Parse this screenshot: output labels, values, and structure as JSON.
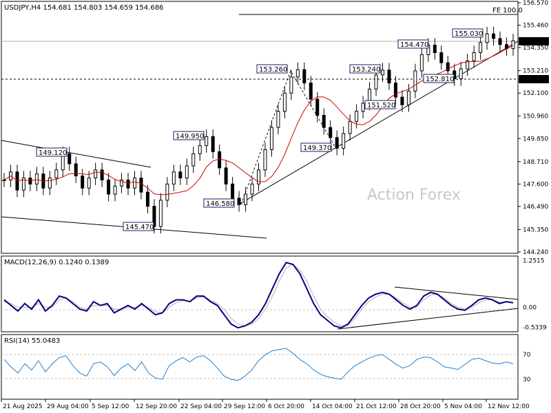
{
  "chart_data": {
    "type": "line",
    "title": "USDJPY,H4 154.681 154.803 154.659 154.686",
    "watermark": "Action Forex",
    "colors": {
      "candle": "#000000",
      "ma": "#d00000",
      "macd": "#000080",
      "signal": "#b0b0b0",
      "rsi": "#1e7fd0",
      "trend": "#000000"
    },
    "price_axis": {
      "ticks": [
        "156.570",
        "155.460",
        "154.350",
        "153.210",
        "152.100",
        "150.960",
        "149.850",
        "148.710",
        "147.600",
        "146.490",
        "145.350",
        "144.240"
      ],
      "range": [
        144.24,
        156.57
      ]
    },
    "current_price": "154.686",
    "level_152_810": "152.810",
    "fe_label": "FE 100.0",
    "price_labels": [
      "149.120",
      "145.470",
      "149.950",
      "146.580",
      "153.260",
      "149.370",
      "153.240",
      "151.520",
      "154.470",
      "152.810",
      "155.030"
    ],
    "series_price": [
      147.8,
      148.2,
      147.3,
      147.9,
      147.6,
      148.1,
      147.4,
      147.9,
      148.3,
      149.1,
      148.6,
      148.0,
      147.4,
      147.9,
      148.3,
      147.8,
      147.1,
      147.5,
      147.8,
      147.4,
      147.9,
      147.2,
      146.5,
      145.5,
      146.8,
      147.6,
      148.2,
      147.9,
      148.5,
      149.1,
      149.5,
      149.95,
      149.2,
      148.4,
      147.6,
      146.9,
      146.58,
      147.1,
      147.6,
      148.3,
      149.3,
      150.4,
      151.2,
      152.1,
      152.9,
      153.26,
      152.6,
      151.8,
      151.0,
      150.4,
      149.9,
      149.37,
      150.1,
      150.7,
      151.2,
      151.6,
      152.3,
      153.0,
      153.24,
      152.6,
      151.9,
      151.52,
      152.2,
      153.2,
      154.0,
      154.47,
      154.1,
      153.6,
      153.2,
      152.81,
      153.3,
      153.7,
      154.1,
      154.6,
      155.03,
      154.8,
      154.5,
      154.3,
      154.686
    ],
    "macd": {
      "label": "MACD(12,26,9) 0.1240 0.1389",
      "ticks": [
        "1.2515",
        "0.00",
        "-0.5339"
      ],
      "range": [
        -0.62,
        1.3
      ]
    },
    "macd_series": [
      0.2,
      0.05,
      -0.1,
      0.1,
      -0.05,
      0.2,
      -0.1,
      0.05,
      0.3,
      0.25,
      0.1,
      -0.05,
      -0.1,
      0.15,
      0.05,
      0.1,
      -0.15,
      -0.05,
      0.05,
      -0.05,
      0.1,
      -0.05,
      -0.2,
      -0.15,
      0.1,
      0.2,
      0.2,
      0.15,
      0.3,
      0.3,
      0.15,
      0.05,
      -0.2,
      -0.45,
      -0.55,
      -0.5,
      -0.4,
      -0.2,
      0.1,
      0.5,
      0.9,
      1.2,
      1.15,
      0.9,
      0.5,
      0.1,
      -0.2,
      -0.35,
      -0.5,
      -0.55,
      -0.45,
      -0.2,
      0.05,
      0.25,
      0.35,
      0.4,
      0.35,
      0.2,
      0.05,
      -0.05,
      0.05,
      0.3,
      0.4,
      0.35,
      0.2,
      0.05,
      -0.05,
      -0.08,
      0.05,
      0.2,
      0.25,
      0.2,
      0.1,
      0.15,
      0.12
    ],
    "signal_series": [
      0.15,
      0.1,
      0.0,
      0.0,
      0.0,
      0.1,
      0.0,
      0.0,
      0.2,
      0.25,
      0.15,
      0.0,
      -0.05,
      0.05,
      0.05,
      0.05,
      -0.05,
      -0.05,
      0.0,
      0.0,
      0.05,
      0.0,
      -0.12,
      -0.15,
      0.0,
      0.12,
      0.18,
      0.17,
      0.25,
      0.28,
      0.2,
      0.1,
      -0.05,
      -0.3,
      -0.45,
      -0.5,
      -0.45,
      -0.3,
      -0.05,
      0.3,
      0.7,
      1.05,
      1.15,
      1.0,
      0.7,
      0.3,
      -0.05,
      -0.25,
      -0.4,
      -0.5,
      -0.48,
      -0.3,
      -0.05,
      0.15,
      0.28,
      0.35,
      0.35,
      0.25,
      0.12,
      0.0,
      0.0,
      0.2,
      0.33,
      0.35,
      0.25,
      0.1,
      0.0,
      -0.05,
      0.0,
      0.12,
      0.2,
      0.2,
      0.14,
      0.14,
      0.14
    ],
    "rsi": {
      "label": "RSI(14) 55.0483",
      "ticks": [
        "70",
        "30"
      ],
      "range": [
        0,
        100
      ]
    },
    "rsi_series": [
      62,
      50,
      40,
      55,
      45,
      60,
      42,
      55,
      65,
      68,
      52,
      40,
      35,
      55,
      58,
      50,
      36,
      48,
      55,
      44,
      58,
      40,
      32,
      30,
      52,
      60,
      65,
      58,
      66,
      68,
      60,
      48,
      35,
      30,
      28,
      35,
      45,
      60,
      70,
      76,
      78,
      80,
      72,
      62,
      55,
      45,
      38,
      34,
      32,
      30,
      42,
      52,
      58,
      64,
      68,
      70,
      62,
      54,
      48,
      52,
      62,
      66,
      65,
      58,
      50,
      48,
      46,
      54,
      62,
      64,
      60,
      56,
      55,
      58,
      55
    ],
    "time_axis": [
      "21 Aug 2025",
      "29 Aug 04:00",
      "5 Sep 12:00",
      "12 Sep 20:00",
      "22 Sep 04:00",
      "29 Sep 12:00",
      "6 Oct 20:00",
      "14 Oct 04:00",
      "21 Oct 12:00",
      "28 Oct 20:00",
      "5 Nov 04:00",
      "12 Nov 12:00"
    ]
  }
}
